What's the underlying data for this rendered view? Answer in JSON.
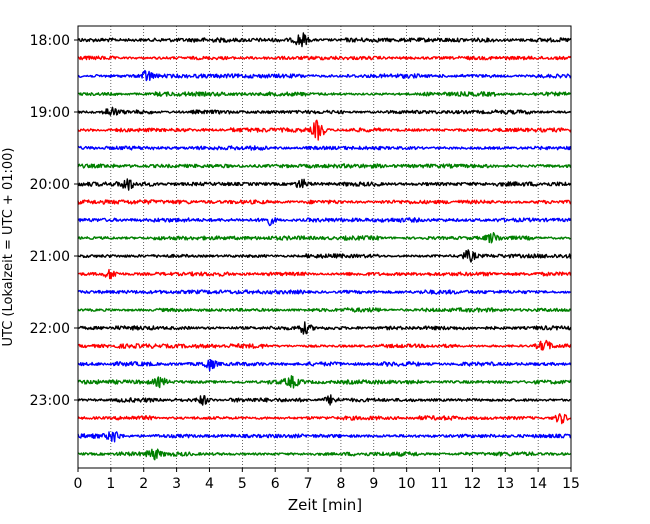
{
  "chart_data": {
    "type": "line",
    "title": "",
    "xlabel": "Zeit  [min]",
    "ylabel": "UTC (Lokalzeit = UTC + 01:00)",
    "xlim": [
      0,
      15
    ],
    "x_ticks": [
      0,
      1,
      2,
      3,
      4,
      5,
      6,
      7,
      8,
      9,
      10,
      11,
      12,
      13,
      14,
      15
    ],
    "x_tick_labels": [
      "0",
      "1",
      "2",
      "3",
      "4",
      "5",
      "6",
      "7",
      "8",
      "9",
      "10",
      "11",
      "12",
      "13",
      "14",
      "15"
    ],
    "y_tick_labels": [
      "18:00",
      "19:00",
      "20:00",
      "21:00",
      "22:00",
      "23:00"
    ],
    "y_tick_minutes": [
      0,
      60,
      120,
      180,
      240,
      300
    ],
    "trace_interval_min": 15,
    "trace_count": 24,
    "trace_colors": [
      "#000000",
      "#ff0000",
      "#0000ff",
      "#008000"
    ],
    "grid": "vertical-dotted",
    "bursts": [
      {
        "trace": 0,
        "x": 6.8,
        "amp": 2.0
      },
      {
        "trace": 2,
        "x": 2.1,
        "amp": 1.7
      },
      {
        "trace": 4,
        "x": 1.0,
        "amp": 1.5
      },
      {
        "trace": 5,
        "x": 7.3,
        "amp": 3.0
      },
      {
        "trace": 8,
        "x": 1.5,
        "amp": 1.6
      },
      {
        "trace": 8,
        "x": 6.8,
        "amp": 1.3
      },
      {
        "trace": 10,
        "x": 5.8,
        "amp": 1.4
      },
      {
        "trace": 11,
        "x": 12.6,
        "amp": 1.4
      },
      {
        "trace": 12,
        "x": 11.9,
        "amp": 1.5
      },
      {
        "trace": 13,
        "x": 1.0,
        "amp": 1.3
      },
      {
        "trace": 16,
        "x": 6.9,
        "amp": 1.5
      },
      {
        "trace": 17,
        "x": 14.2,
        "amp": 1.4
      },
      {
        "trace": 18,
        "x": 4.0,
        "amp": 1.6
      },
      {
        "trace": 19,
        "x": 2.5,
        "amp": 1.3
      },
      {
        "trace": 19,
        "x": 6.5,
        "amp": 1.4
      },
      {
        "trace": 20,
        "x": 3.8,
        "amp": 1.4
      },
      {
        "trace": 20,
        "x": 7.7,
        "amp": 1.3
      },
      {
        "trace": 21,
        "x": 14.7,
        "amp": 1.5
      },
      {
        "trace": 22,
        "x": 1.1,
        "amp": 1.6
      },
      {
        "trace": 23,
        "x": 2.3,
        "amp": 1.4
      }
    ]
  }
}
